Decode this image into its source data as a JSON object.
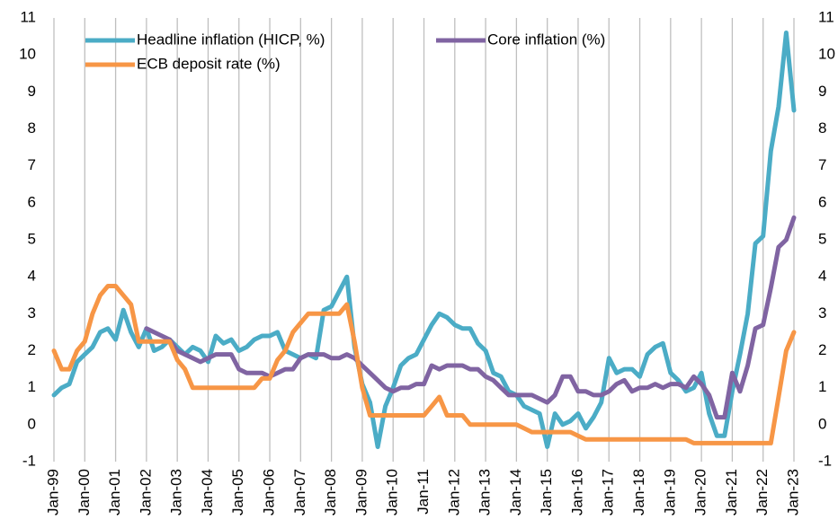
{
  "chart_data": {
    "type": "line",
    "categories": [
      "Jan-99",
      null,
      null,
      null,
      "Jan-00",
      null,
      null,
      null,
      "Jan-01",
      null,
      null,
      null,
      "Jan-02",
      null,
      null,
      null,
      "Jan-03",
      null,
      null,
      null,
      "Jan-04",
      null,
      null,
      null,
      "Jan-05",
      null,
      null,
      null,
      "Jan-06",
      null,
      null,
      null,
      "Jan-07",
      null,
      null,
      null,
      "Jan-08",
      null,
      null,
      null,
      "Jan-09",
      null,
      null,
      null,
      "Jan-10",
      null,
      null,
      null,
      "Jan-11",
      null,
      null,
      null,
      "Jan-12",
      null,
      null,
      null,
      "Jan-13",
      null,
      null,
      null,
      "Jan-14",
      null,
      null,
      null,
      "Jan-15",
      null,
      null,
      null,
      "Jan-16",
      null,
      null,
      null,
      "Jan-17",
      null,
      null,
      null,
      "Jan-18",
      null,
      null,
      null,
      "Jan-19",
      null,
      null,
      null,
      "Jan-20",
      null,
      null,
      null,
      "Jan-21",
      null,
      null,
      null,
      "Jan-22",
      null,
      null,
      null,
      "Jan-23"
    ],
    "series": [
      {
        "name": "Headline inflation (HICP, %)",
        "color": "#4bacc6",
        "values": [
          0.8,
          1.0,
          1.1,
          1.7,
          1.9,
          2.1,
          2.5,
          2.6,
          2.3,
          3.1,
          2.5,
          2.1,
          2.6,
          2.0,
          2.1,
          2.3,
          2.1,
          1.9,
          2.1,
          2.0,
          1.7,
          2.4,
          2.2,
          2.3,
          2.0,
          2.1,
          2.3,
          2.4,
          2.4,
          2.5,
          2.0,
          1.9,
          1.8,
          1.9,
          1.8,
          3.1,
          3.2,
          3.6,
          4.0,
          2.1,
          1.1,
          0.6,
          -0.6,
          0.5,
          1.0,
          1.6,
          1.8,
          1.9,
          2.3,
          2.7,
          3.0,
          2.9,
          2.7,
          2.6,
          2.6,
          2.2,
          2.0,
          1.4,
          1.3,
          0.9,
          0.8,
          0.5,
          0.4,
          0.3,
          -0.6,
          0.3,
          0.0,
          0.1,
          0.3,
          -0.1,
          0.2,
          0.6,
          1.8,
          1.4,
          1.5,
          1.5,
          1.3,
          1.9,
          2.1,
          2.2,
          1.4,
          1.2,
          0.9,
          1.0,
          1.4,
          0.3,
          -0.3,
          -0.3,
          0.9,
          1.9,
          3.0,
          4.9,
          5.1,
          7.4,
          8.6,
          10.6,
          8.5
        ]
      },
      {
        "name": "Core inflation (%)",
        "color": "#8064a2",
        "values": [
          null,
          null,
          null,
          null,
          null,
          null,
          null,
          null,
          null,
          null,
          null,
          null,
          2.6,
          2.5,
          2.4,
          2.3,
          2.0,
          1.9,
          1.8,
          1.7,
          1.8,
          1.9,
          1.9,
          1.9,
          1.5,
          1.4,
          1.4,
          1.4,
          1.3,
          1.4,
          1.5,
          1.5,
          1.8,
          1.9,
          1.9,
          1.9,
          1.8,
          1.8,
          1.9,
          1.8,
          1.6,
          1.4,
          1.2,
          1.0,
          0.9,
          1.0,
          1.0,
          1.1,
          1.1,
          1.6,
          1.5,
          1.6,
          1.6,
          1.6,
          1.5,
          1.5,
          1.3,
          1.2,
          1.0,
          0.8,
          0.8,
          0.8,
          0.8,
          0.7,
          0.6,
          0.8,
          1.3,
          1.3,
          0.9,
          0.9,
          0.8,
          0.8,
          0.9,
          1.1,
          1.2,
          0.9,
          1.0,
          1.0,
          1.1,
          1.0,
          1.1,
          1.1,
          1.0,
          1.3,
          1.1,
          0.8,
          0.2,
          0.2,
          1.4,
          0.9,
          1.6,
          2.6,
          2.7,
          3.7,
          4.8,
          5.0,
          5.6
        ]
      },
      {
        "name": "ECB deposit rate (%)",
        "color": "#f79646",
        "values": [
          2.0,
          1.5,
          1.5,
          2.0,
          2.25,
          3.0,
          3.5,
          3.75,
          3.75,
          3.5,
          3.25,
          2.25,
          2.25,
          2.25,
          2.25,
          2.25,
          1.75,
          1.5,
          1.0,
          1.0,
          1.0,
          1.0,
          1.0,
          1.0,
          1.0,
          1.0,
          1.0,
          1.25,
          1.25,
          1.75,
          2.0,
          2.5,
          2.75,
          3.0,
          3.0,
          3.0,
          3.0,
          3.0,
          3.25,
          2.25,
          1.0,
          0.25,
          0.25,
          0.25,
          0.25,
          0.25,
          0.25,
          0.25,
          0.25,
          0.5,
          0.75,
          0.25,
          0.25,
          0.25,
          0,
          0,
          0,
          0,
          0,
          0,
          0,
          -0.1,
          -0.2,
          -0.2,
          -0.2,
          -0.2,
          -0.2,
          -0.2,
          -0.3,
          -0.4,
          -0.4,
          -0.4,
          -0.4,
          -0.4,
          -0.4,
          -0.4,
          -0.4,
          -0.4,
          -0.4,
          -0.4,
          -0.4,
          -0.4,
          -0.4,
          -0.5,
          -0.5,
          -0.5,
          -0.5,
          -0.5,
          -0.5,
          -0.5,
          -0.5,
          -0.5,
          -0.5,
          -0.5,
          0.75,
          2.0,
          2.5
        ]
      }
    ],
    "ylim": [
      -1,
      11
    ],
    "yticks": [
      -1,
      0,
      1,
      2,
      3,
      4,
      5,
      6,
      7,
      8,
      9,
      10,
      11
    ],
    "y2lim": [
      -1,
      11
    ],
    "y2ticks": [
      -1,
      0,
      1,
      2,
      3,
      4,
      5,
      6,
      7,
      8,
      9,
      10,
      11
    ],
    "grid": "x"
  }
}
